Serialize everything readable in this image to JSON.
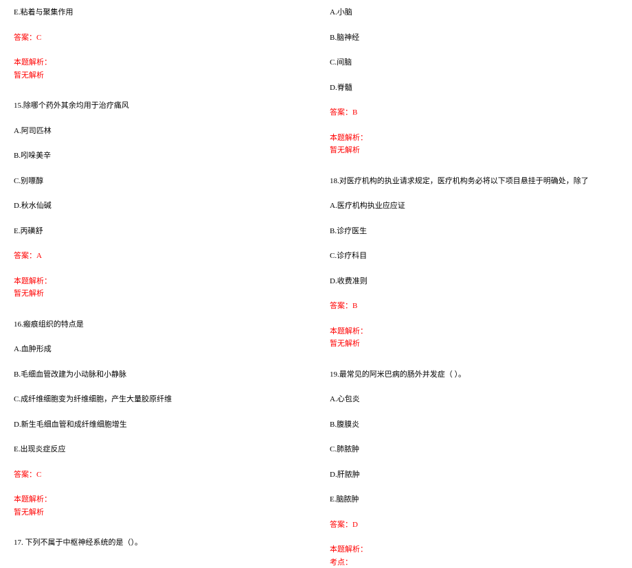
{
  "colors": {
    "text": "#000000",
    "accent": "#ff0000",
    "background": "#ffffff"
  },
  "typography": {
    "font_family": "SimSun",
    "font_size_pt": 8,
    "line_height": 1.5
  },
  "left": {
    "q14": {
      "optE": "E.粘着与聚集作用",
      "answer": "答案：C",
      "analysis_label": "本题解析：",
      "analysis_text": "暂无解析"
    },
    "q15": {
      "stem": "15.除哪个药外其余均用于治疗痛风",
      "optA": "A.阿司匹林",
      "optB": "B.吲哚美辛",
      "optC": "C.别嘌醇",
      "optD": "D.秋水仙碱",
      "optE": "E.丙磺舒",
      "answer": "答案：A",
      "analysis_label": "本题解析：",
      "analysis_text": "暂无解析"
    },
    "q16": {
      "stem": "16.瘢痕组织的特点是",
      "optA": "A.血肿形成",
      "optB": "B.毛细血管改建为小动脉和小静脉",
      "optC": "C.成纤维细胞变为纤维细胞，产生大量胶原纤维",
      "optD": "D.新生毛细血管和成纤维细胞增生",
      "optE": "E.出现炎症反应",
      "answer": "答案：C",
      "analysis_label": "本题解析：",
      "analysis_text": "暂无解析"
    },
    "q17": {
      "stem": "17. 下列不属于中枢神经系统的是（）。"
    }
  },
  "right": {
    "q17": {
      "optA": "A.小脑",
      "optB": "B.脑神经",
      "optC": "C.间脑",
      "optD": "D.脊髓",
      "answer": "答案：B",
      "analysis_label": "本题解析：",
      "analysis_text": "暂无解析"
    },
    "q18": {
      "stem": "18.对医疗机构的执业请求规定，医疗机构务必将以下项目悬挂于明确处，除了",
      "optA": "A.医疗机构执业应应证",
      "optB": "B.诊疗医生",
      "optC": "C.诊疗科目",
      "optD": "D.收费准则",
      "answer": "答案：B",
      "analysis_label": "本题解析：",
      "analysis_text": "暂无解析"
    },
    "q19": {
      "stem": "19.最常见的阿米巴病的肠外并发症（   ）。",
      "optA": "A.心包炎",
      "optB": "B.腹膜炎",
      "optC": "C.肺脓肿",
      "optD": "D.肝脓肿",
      "optE": "E.脑脓肿",
      "answer": "答案：D",
      "analysis_label": "本题解析：",
      "analysis_text": "考点："
    }
  }
}
